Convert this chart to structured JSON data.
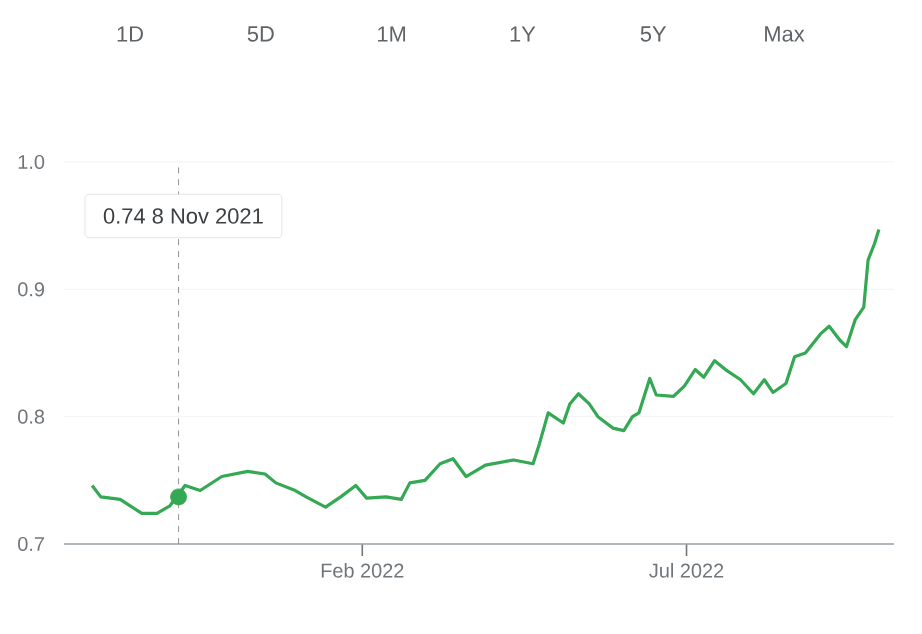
{
  "chart_data": {
    "type": "line",
    "x": [
      "2021-09-29",
      "2021-10-03",
      "2021-10-12",
      "2021-10-22",
      "2021-10-29",
      "2021-11-04",
      "2021-11-11",
      "2021-11-18",
      "2021-11-28",
      "2021-12-10",
      "2021-12-18",
      "2021-12-23",
      "2022-01-01",
      "2022-01-06",
      "2022-01-15",
      "2022-01-22",
      "2022-01-29",
      "2022-02-03",
      "2022-02-12",
      "2022-02-19",
      "2022-02-23",
      "2022-03-02",
      "2022-03-09",
      "2022-03-15",
      "2022-03-21",
      "2022-03-30",
      "2022-04-12",
      "2022-04-21",
      "2022-04-24",
      "2022-04-28",
      "2022-05-05",
      "2022-05-08",
      "2022-05-12",
      "2022-05-17",
      "2022-05-21",
      "2022-05-28",
      "2022-06-02",
      "2022-06-06",
      "2022-06-09",
      "2022-06-14",
      "2022-06-17",
      "2022-06-25",
      "2022-06-30",
      "2022-07-05",
      "2022-07-09",
      "2022-07-14",
      "2022-07-19",
      "2022-07-26",
      "2022-08-01",
      "2022-08-06",
      "2022-08-10",
      "2022-08-16",
      "2022-08-20",
      "2022-08-25",
      "2022-09-01",
      "2022-09-05",
      "2022-09-10",
      "2022-09-13",
      "2022-09-17",
      "2022-09-21",
      "2022-09-23",
      "2022-09-26",
      "2022-09-28"
    ],
    "series": [
      {
        "color": "#34a853",
        "values": [
          0.746,
          0.737,
          0.735,
          0.724,
          0.724,
          0.73,
          0.746,
          0.742,
          0.753,
          0.757,
          0.755,
          0.748,
          0.742,
          0.737,
          0.729,
          0.737,
          0.746,
          0.736,
          0.737,
          0.735,
          0.748,
          0.75,
          0.763,
          0.767,
          0.753,
          0.762,
          0.766,
          0.763,
          0.779,
          0.803,
          0.795,
          0.81,
          0.818,
          0.81,
          0.8,
          0.791,
          0.789,
          0.8,
          0.803,
          0.83,
          0.817,
          0.816,
          0.824,
          0.837,
          0.831,
          0.844,
          0.837,
          0.829,
          0.818,
          0.829,
          0.819,
          0.826,
          0.847,
          0.85,
          0.865,
          0.871,
          0.86,
          0.855,
          0.876,
          0.886,
          0.923,
          0.936,
          0.947
        ]
      },
      {
        "type": "scatter",
        "color": "#34a853",
        "x": [
          "2021-11-08"
        ],
        "values": [
          0.737
        ]
      }
    ],
    "xlim": [
      "2021-09-16",
      "2022-10-05"
    ],
    "xticks": [
      {
        "value": "2022-02-01",
        "label": "Feb 2022"
      },
      {
        "value": "2022-07-01",
        "label": "Jul 2022"
      }
    ],
    "ylim": [
      0.7,
      1.0
    ],
    "yticks": [
      0.7,
      0.8,
      0.9,
      {
        "value": 1,
        "label": "1.0"
      }
    ],
    "grid": "y",
    "line_style": "solid",
    "ref_lines": [
      {
        "axis": "x",
        "value": "2021-11-08",
        "color": "#757575",
        "line_style": "dashed"
      }
    ],
    "annotations": [
      "0.74  8 Nov 2021",
      "1D",
      "5D",
      "1M",
      "1Y",
      "5Y",
      "Max"
    ]
  }
}
